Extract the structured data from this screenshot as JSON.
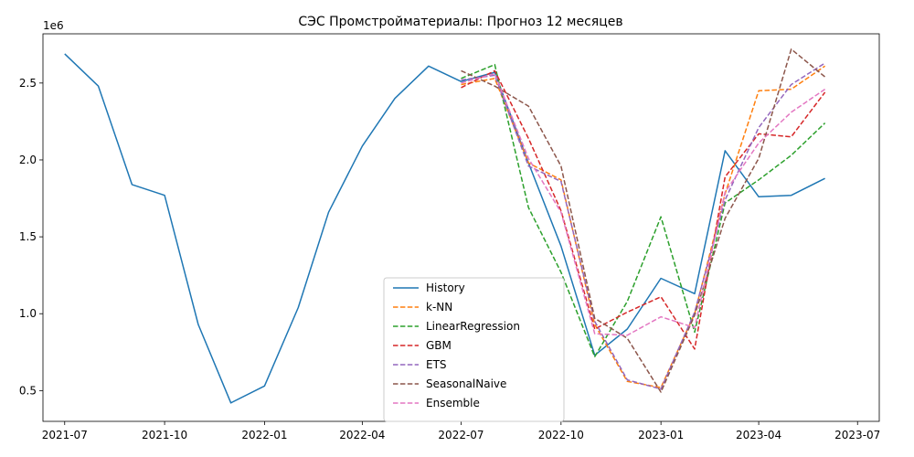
{
  "chart_data": {
    "type": "line",
    "title": "СЭС Промстройматериалы: Прогноз 12 месяцев",
    "xlabel": "",
    "ylabel": "",
    "y_offset_label": "1e6",
    "y_multiplier": 1000000,
    "ylim": [
      0.3,
      2.82
    ],
    "xlim": [
      "2021-06-11",
      "2023-07-21"
    ],
    "x_ticks": [
      "2021-07-01",
      "2021-10-01",
      "2022-01-01",
      "2022-04-01",
      "2022-07-01",
      "2022-10-01",
      "2023-01-01",
      "2023-04-01",
      "2023-07-01"
    ],
    "x_tick_labels": [
      "2021-07",
      "2021-10",
      "2022-01",
      "2022-04",
      "2022-07",
      "2022-10",
      "2023-01",
      "2023-04",
      "2023-07"
    ],
    "y_ticks": [
      0.5,
      1.0,
      1.5,
      2.0,
      2.5
    ],
    "y_tick_labels": [
      "0.5",
      "1.0",
      "1.5",
      "2.0",
      "2.5"
    ],
    "grid": false,
    "legend_position": "bottom-center",
    "series": [
      {
        "name": "History",
        "color": "#1f77b4",
        "dash": "solid",
        "x": [
          "2021-07-01",
          "2021-08-01",
          "2021-09-01",
          "2021-10-01",
          "2021-11-01",
          "2021-12-01",
          "2022-01-01",
          "2022-02-01",
          "2022-03-01",
          "2022-04-01",
          "2022-05-01",
          "2022-06-01",
          "2022-07-01",
          "2022-08-01",
          "2022-09-01",
          "2022-10-01",
          "2022-11-01",
          "2022-12-01",
          "2023-01-01",
          "2023-02-01",
          "2023-03-01",
          "2023-04-01",
          "2023-05-01",
          "2023-06-01"
        ],
        "y": [
          2.69,
          2.48,
          1.84,
          1.77,
          0.93,
          0.42,
          0.53,
          1.04,
          1.66,
          2.09,
          2.4,
          2.61,
          2.51,
          2.57,
          1.98,
          1.44,
          0.73,
          0.9,
          1.23,
          1.13,
          2.06,
          1.76,
          1.77,
          1.88
        ]
      },
      {
        "name": "k-NN",
        "color": "#ff7f0e",
        "dash": "dashed",
        "x": [
          "2022-07-01",
          "2022-08-01",
          "2022-09-01",
          "2022-10-01",
          "2022-11-01",
          "2022-12-01",
          "2023-01-01",
          "2023-02-01",
          "2023-03-01",
          "2023-04-01",
          "2023-05-01",
          "2023-06-01"
        ],
        "y": [
          2.49,
          2.53,
          1.98,
          1.87,
          0.93,
          0.56,
          0.52,
          1.0,
          1.78,
          2.45,
          2.46,
          2.61
        ]
      },
      {
        "name": "LinearRegression",
        "color": "#2ca02c",
        "dash": "dashed",
        "x": [
          "2022-07-01",
          "2022-08-01",
          "2022-09-01",
          "2022-10-01",
          "2022-11-01",
          "2022-12-01",
          "2023-01-01",
          "2023-02-01",
          "2023-03-01",
          "2023-04-01",
          "2023-05-01",
          "2023-06-01"
        ],
        "y": [
          2.53,
          2.62,
          1.69,
          1.27,
          0.72,
          1.08,
          1.63,
          0.88,
          1.72,
          1.87,
          2.03,
          2.24
        ]
      },
      {
        "name": "GBM",
        "color": "#d62728",
        "dash": "dashed",
        "x": [
          "2022-07-01",
          "2022-08-01",
          "2022-09-01",
          "2022-10-01",
          "2022-11-01",
          "2022-12-01",
          "2023-01-01",
          "2023-02-01",
          "2023-03-01",
          "2023-04-01",
          "2023-05-01",
          "2023-06-01"
        ],
        "y": [
          2.47,
          2.58,
          2.14,
          1.67,
          0.9,
          1.01,
          1.11,
          0.77,
          1.89,
          2.17,
          2.15,
          2.44
        ]
      },
      {
        "name": "ETS",
        "color": "#9467bd",
        "dash": "dashed",
        "x": [
          "2022-07-01",
          "2022-08-01",
          "2022-09-01",
          "2022-10-01",
          "2022-11-01",
          "2022-12-01",
          "2023-01-01",
          "2023-02-01",
          "2023-03-01",
          "2023-04-01",
          "2023-05-01",
          "2023-06-01"
        ],
        "y": [
          2.52,
          2.55,
          1.96,
          1.86,
          0.95,
          0.57,
          0.51,
          1.01,
          1.74,
          2.21,
          2.49,
          2.63
        ]
      },
      {
        "name": "SeasonalNaive",
        "color": "#8c564b",
        "dash": "dashed",
        "x": [
          "2022-07-01",
          "2022-08-01",
          "2022-09-01",
          "2022-10-01",
          "2022-11-01",
          "2022-12-01",
          "2023-01-01",
          "2023-02-01",
          "2023-03-01",
          "2023-04-01",
          "2023-05-01",
          "2023-06-01"
        ],
        "y": [
          2.58,
          2.48,
          2.35,
          1.96,
          0.97,
          0.84,
          0.49,
          0.99,
          1.62,
          2.01,
          2.72,
          2.54
        ]
      },
      {
        "name": "Ensemble",
        "color": "#e377c2",
        "dash": "dashed",
        "x": [
          "2022-07-01",
          "2022-08-01",
          "2022-09-01",
          "2022-10-01",
          "2022-11-01",
          "2022-12-01",
          "2023-01-01",
          "2023-02-01",
          "2023-03-01",
          "2023-04-01",
          "2023-05-01",
          "2023-06-01"
        ],
        "y": [
          2.5,
          2.56,
          2.01,
          1.66,
          0.87,
          0.86,
          0.98,
          0.91,
          1.79,
          2.11,
          2.31,
          2.46
        ]
      }
    ]
  }
}
